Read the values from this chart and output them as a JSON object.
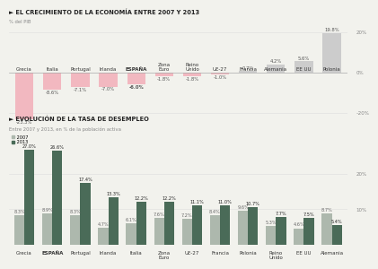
{
  "chart1": {
    "title": "EL CRECIMIENTO DE LA ECONOMÍA ENTRE 2007 Y 2013",
    "ylabel": "% del PIB",
    "categories": [
      "Grecia",
      "Italia",
      "Portugal",
      "Irlanda",
      "ESPAÑA",
      "Zona\nEuro",
      "Reino\nUnido",
      "UE-27",
      "Francia",
      "Alemania",
      "EE UU",
      "Polonia"
    ],
    "values": [
      -23.3,
      -8.6,
      -7.1,
      -7.0,
      -6.0,
      -1.8,
      -1.8,
      -1.0,
      0.7,
      4.2,
      5.6,
      19.8
    ],
    "bar_colors_neg": "#f2b8c0",
    "bar_colors_pos": "#cccccc",
    "ylim": [
      -26,
      23
    ],
    "yticks": [
      -20,
      0,
      20
    ],
    "bold_idx": 4
  },
  "chart2": {
    "title": "EVOLUCIÓN DE LA TASA DE DESEMPLEO",
    "subtitle": "Entre 2007 y 2013, en % de la población activa",
    "legend_2007": "2007",
    "legend_2013": "2013",
    "categories": [
      "Grecia",
      "ESPAÑA",
      "Portugal",
      "Irlanda",
      "Italia",
      "Zona\nEuro",
      "UE-27",
      "Francia",
      "Polonia",
      "Reino\nUnido",
      "EE UU",
      "Alemania"
    ],
    "values_2007": [
      8.3,
      8.9,
      8.3,
      4.7,
      6.1,
      7.6,
      7.2,
      8.4,
      9.6,
      5.3,
      4.6,
      8.7
    ],
    "values_2013": [
      27.0,
      26.6,
      17.4,
      13.3,
      12.2,
      12.2,
      11.1,
      11.0,
      10.7,
      7.7,
      7.5,
      5.4
    ],
    "color_2007": "#adb8ad",
    "color_2013": "#4a6b58",
    "ylim": [
      0,
      30
    ],
    "yticks": [
      10,
      20
    ]
  },
  "bg_color": "#f2f2ed",
  "title_fontsize": 4.8,
  "label_fontsize": 3.8,
  "tick_fontsize": 4.0,
  "cat_fontsize": 4.0
}
